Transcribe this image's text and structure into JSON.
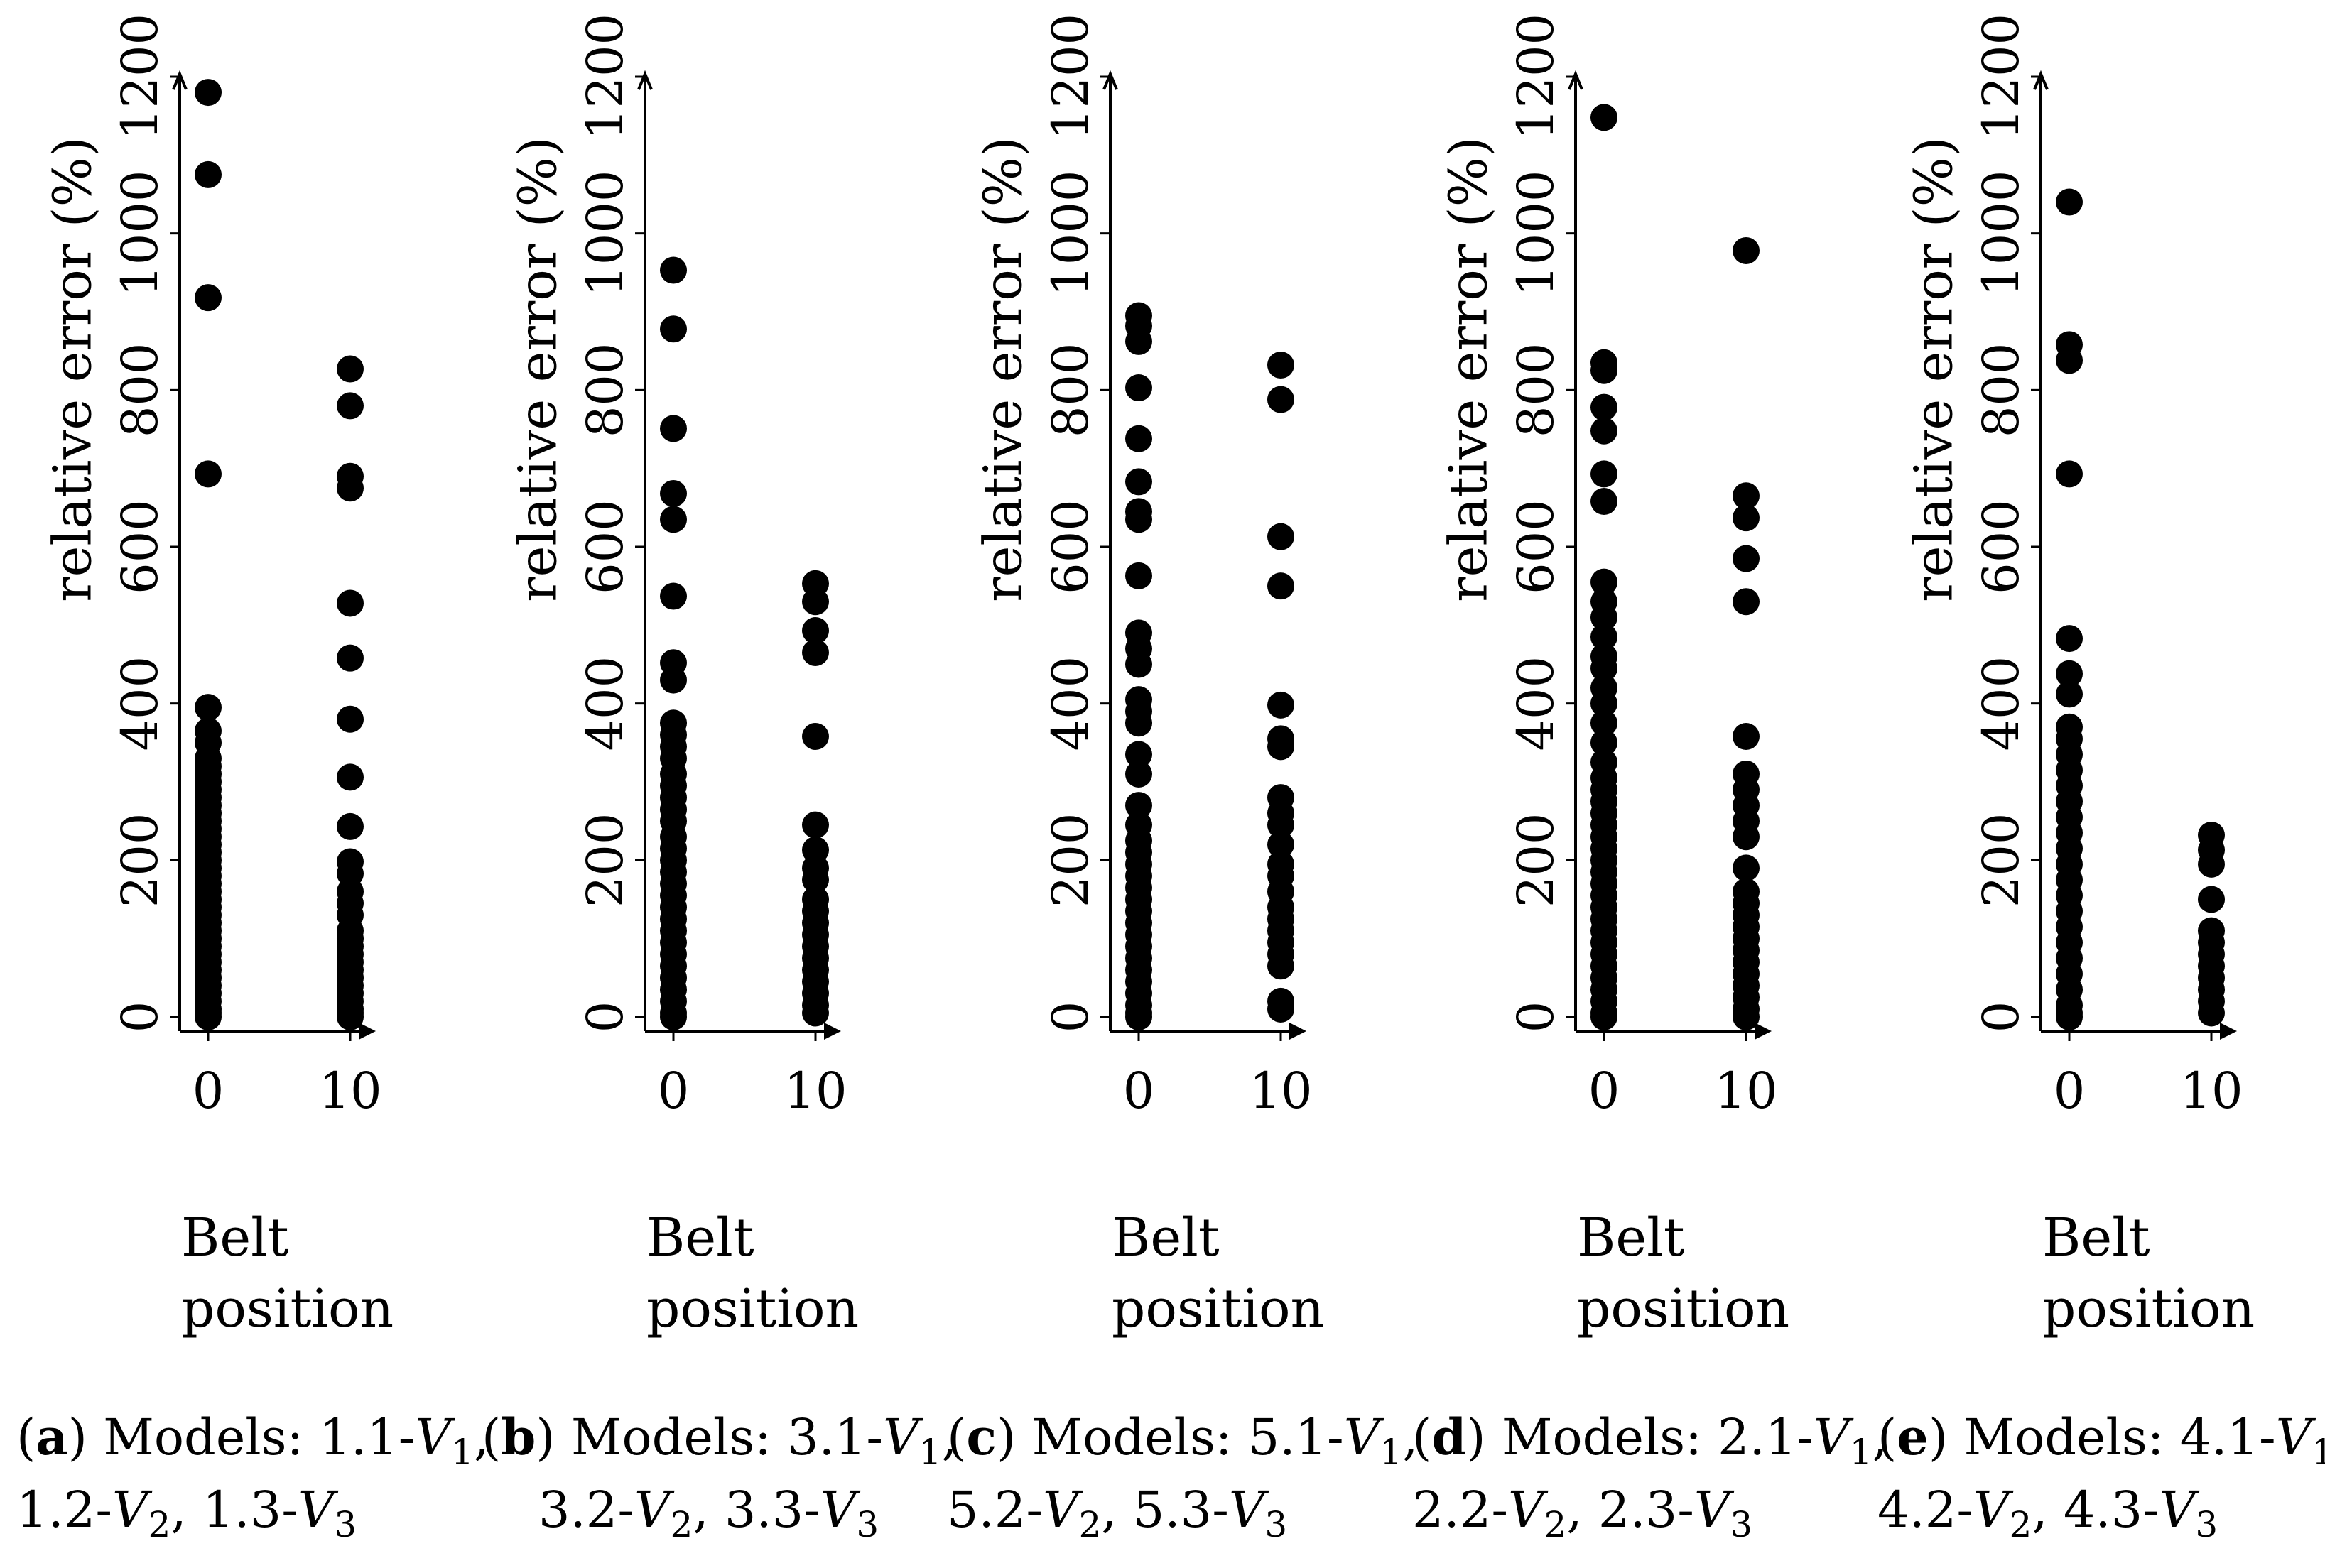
{
  "chart_data": [
    {
      "type": "scatter",
      "panel_label": "a",
      "caption_line1": "Models: 1.1-",
      "caption_line2": "1.2-",
      "models": [
        {
          "prefix": "1.1-",
          "var": "V",
          "sub": "1"
        },
        {
          "prefix": "1.2-",
          "var": "V",
          "sub": "2"
        },
        {
          "prefix": "1.3-",
          "var": "V",
          "sub": "3"
        }
      ],
      "ylabel": "relative error (%)",
      "xlabel_line1": "Belt",
      "xlabel_line2": "position",
      "x_ticks": [
        0,
        10
      ],
      "y_ticks": [
        0,
        200,
        400,
        600,
        800,
        1000,
        1200
      ],
      "ylim": [
        0,
        1200
      ],
      "series": [
        {
          "x": 0,
          "values": [
            1180,
            1075,
            918,
            693,
            395,
            365,
            350,
            330,
            320,
            310,
            300,
            290,
            280,
            270,
            260,
            250,
            240,
            230,
            220,
            210,
            200,
            190,
            180,
            170,
            160,
            150,
            140,
            130,
            120,
            110,
            100,
            90,
            80,
            70,
            60,
            50,
            40,
            30,
            20,
            10,
            5,
            0
          ]
        },
        {
          "x": 10,
          "values": [
            827,
            780,
            690,
            675,
            528,
            458,
            380,
            306,
            243,
            198,
            183,
            160,
            145,
            130,
            110,
            100,
            90,
            80,
            70,
            60,
            50,
            40,
            30,
            20,
            10,
            5,
            0
          ]
        }
      ]
    },
    {
      "type": "scatter",
      "panel_label": "b",
      "models": [
        {
          "prefix": "3.1-",
          "var": "V",
          "sub": "1"
        },
        {
          "prefix": "3.2-",
          "var": "V",
          "sub": "2"
        },
        {
          "prefix": "3.3-",
          "var": "V",
          "sub": "3"
        }
      ],
      "ylabel": "relative error (%)",
      "xlabel_line1": "Belt",
      "xlabel_line2": "position",
      "x_ticks": [
        0,
        10
      ],
      "y_ticks": [
        0,
        200,
        400,
        600,
        800,
        1000,
        1200
      ],
      "ylim": [
        0,
        1200
      ],
      "series": [
        {
          "x": 0,
          "values": [
            953,
            878,
            751,
            668,
            635,
            537,
            452,
            430,
            375,
            360,
            345,
            330,
            310,
            295,
            280,
            265,
            250,
            230,
            215,
            200,
            185,
            170,
            155,
            140,
            125,
            110,
            95,
            80,
            65,
            50,
            35,
            20,
            5,
            0
          ]
        },
        {
          "x": 10,
          "values": [
            553,
            530,
            493,
            465,
            358,
            245,
            213,
            190,
            175,
            150,
            135,
            120,
            105,
            90,
            75,
            60,
            45,
            30,
            15,
            5
          ]
        }
      ]
    },
    {
      "type": "scatter",
      "panel_label": "c",
      "models": [
        {
          "prefix": "5.1-",
          "var": "V",
          "sub": "1"
        },
        {
          "prefix": "5.2-",
          "var": "V",
          "sub": "2"
        },
        {
          "prefix": "5.3-",
          "var": "V",
          "sub": "3"
        }
      ],
      "ylabel": "relative error (%)",
      "xlabel_line1": "Belt",
      "xlabel_line2": "position",
      "x_ticks": [
        0,
        10
      ],
      "y_ticks": [
        0,
        200,
        400,
        600,
        800,
        1000,
        1200
      ],
      "ylim": [
        0,
        1200
      ],
      "series": [
        {
          "x": 0,
          "values": [
            895,
            882,
            862,
            803,
            738,
            683,
            645,
            635,
            563,
            490,
            470,
            450,
            405,
            390,
            375,
            335,
            310,
            270,
            245,
            225,
            210,
            195,
            180,
            165,
            150,
            135,
            120,
            105,
            90,
            75,
            60,
            45,
            30,
            15,
            5,
            0
          ]
        },
        {
          "x": 10,
          "values": [
            832,
            788,
            613,
            550,
            398,
            355,
            345,
            280,
            260,
            245,
            220,
            195,
            180,
            160,
            140,
            125,
            110,
            95,
            80,
            65,
            20,
            10
          ]
        }
      ]
    },
    {
      "type": "scatter",
      "panel_label": "d",
      "models": [
        {
          "prefix": "2.1-",
          "var": "V",
          "sub": "1"
        },
        {
          "prefix": "2.2-",
          "var": "V",
          "sub": "2"
        },
        {
          "prefix": "2.3-",
          "var": "V",
          "sub": "3"
        }
      ],
      "ylabel": "relative error (%)",
      "xlabel_line1": "Belt",
      "xlabel_line2": "position",
      "x_ticks": [
        0,
        10
      ],
      "y_ticks": [
        0,
        200,
        400,
        600,
        800,
        1000,
        1200
      ],
      "ylim": [
        0,
        1200
      ],
      "series": [
        {
          "x": 0,
          "values": [
            1148,
            835,
            825,
            778,
            748,
            693,
            658,
            555,
            530,
            510,
            485,
            460,
            445,
            420,
            400,
            375,
            350,
            325,
            305,
            290,
            275,
            260,
            245,
            230,
            215,
            200,
            185,
            170,
            155,
            140,
            125,
            110,
            95,
            80,
            65,
            50,
            35,
            20,
            5,
            0
          ]
        },
        {
          "x": 10,
          "values": [
            978,
            665,
            637,
            585,
            530,
            358,
            310,
            290,
            270,
            250,
            230,
            190,
            160,
            145,
            130,
            115,
            100,
            85,
            70,
            55,
            40,
            25,
            10,
            0
          ]
        }
      ]
    },
    {
      "type": "scatter",
      "panel_label": "e",
      "models": [
        {
          "prefix": "4.1-",
          "var": "V",
          "sub": "1"
        },
        {
          "prefix": "4.2-",
          "var": "V",
          "sub": "2"
        },
        {
          "prefix": "4.3-",
          "var": "V",
          "sub": "3"
        }
      ],
      "ylabel": "relative error (%)",
      "xlabel_line1": "Belt",
      "xlabel_line2": "position",
      "x_ticks": [
        0,
        10
      ],
      "y_ticks": [
        0,
        200,
        400,
        600,
        800,
        1000,
        1200
      ],
      "ylim": [
        0,
        1200
      ],
      "series": [
        {
          "x": 0,
          "values": [
            1040,
            858,
            838,
            693,
            483,
            438,
            412,
            370,
            355,
            335,
            315,
            295,
            275,
            255,
            235,
            215,
            195,
            175,
            155,
            135,
            115,
            95,
            75,
            55,
            35,
            15,
            5,
            0
          ]
        },
        {
          "x": 10,
          "values": [
            232,
            213,
            195,
            150,
            110,
            95,
            80,
            65,
            50,
            35,
            20,
            5
          ]
        }
      ]
    }
  ]
}
